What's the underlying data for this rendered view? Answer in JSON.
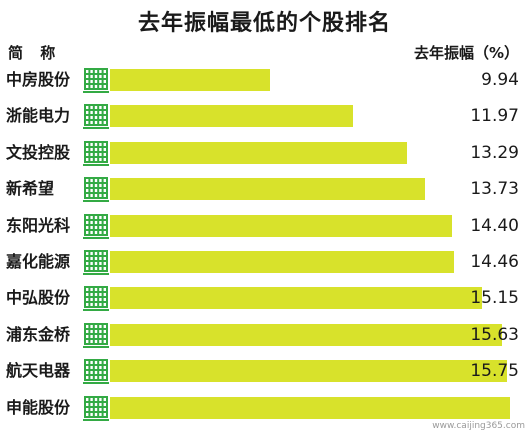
{
  "chart_data": {
    "type": "bar",
    "orientation": "horizontal",
    "title": "去年振幅最低的个股排名",
    "category_header": "简 称",
    "value_header": "去年振幅（%）",
    "categories": [
      "中房股份",
      "浙能电力",
      "文投控股",
      "新希望",
      "东阳光科",
      "嘉化能源",
      "中弘股份",
      "浦东金桥",
      "航天电器",
      "申能股份"
    ],
    "values": [
      9.94,
      11.97,
      13.29,
      13.73,
      14.4,
      14.46,
      15.15,
      15.63,
      15.75,
      15.83
    ],
    "value_labels": [
      "9.94",
      "11.97",
      "13.29",
      "13.73",
      "14.40",
      "14.46",
      "15.15",
      "15.63",
      "15.75",
      ""
    ],
    "grid": false,
    "legend": "none",
    "bar_color": "#d8e22b",
    "icon_color": "#33aa44",
    "icon_name": "building-icon"
  },
  "watermark": "www.caijing365.com"
}
